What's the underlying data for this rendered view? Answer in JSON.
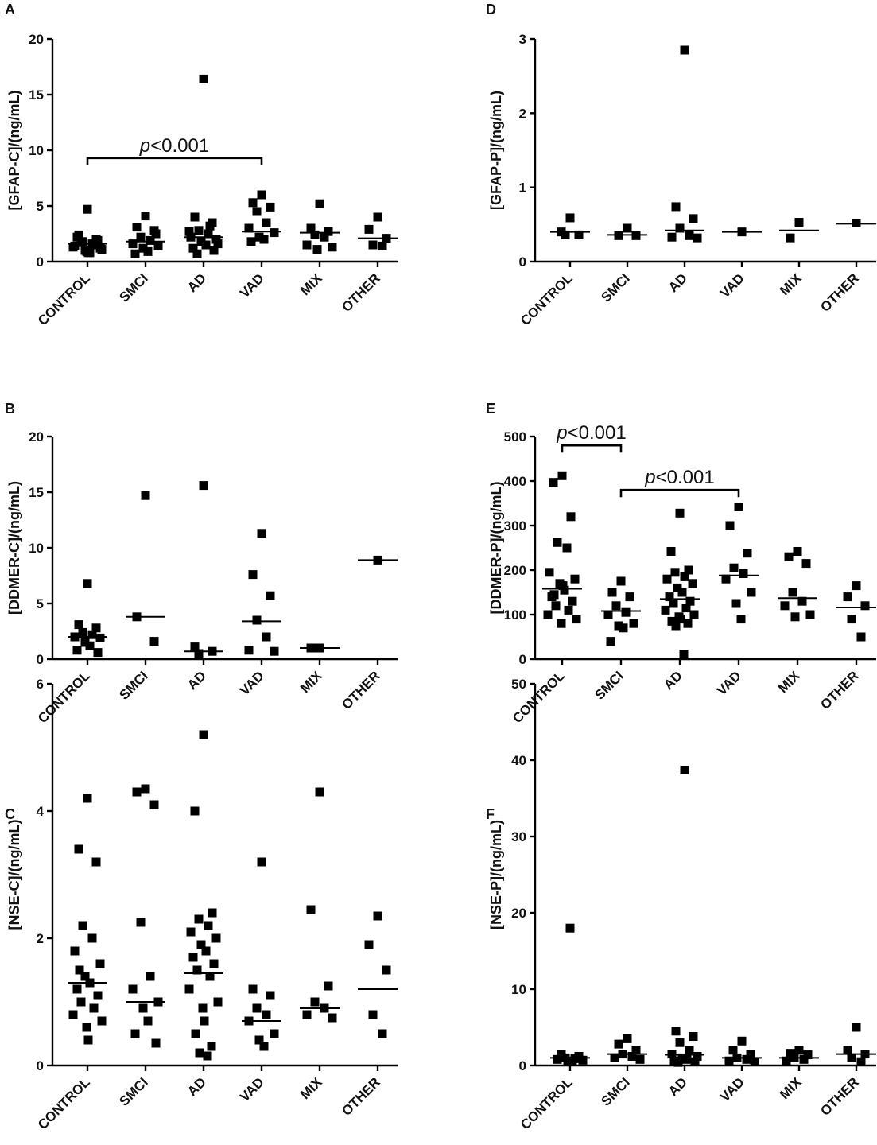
{
  "chart_data": [
    {
      "panel_letter": "A",
      "type": "scatter",
      "ylabel": "[GFAP-C]/(ng/mL)",
      "ylim": [
        0,
        20
      ],
      "yticks": [
        0,
        5,
        10,
        15,
        20
      ],
      "categories": [
        "CONTROL",
        "SMCI",
        "AD",
        "VAD",
        "MIX",
        "OTHER"
      ],
      "medians": [
        1.6,
        1.8,
        2.2,
        2.7,
        2.6,
        2.1
      ],
      "points": [
        [
          4.7,
          2.4,
          2.0,
          1.8,
          1.6,
          1.4,
          1.2,
          1.0,
          0.8,
          2.2,
          1.9,
          1.7,
          1.5,
          1.3,
          1.1,
          0.9,
          0.8
        ],
        [
          4.1,
          3.1,
          2.8,
          2.2,
          1.9,
          1.6,
          1.4,
          1.2,
          0.9,
          0.7,
          2.5
        ],
        [
          16.4,
          4.0,
          3.5,
          2.8,
          2.5,
          2.2,
          2.0,
          1.8,
          1.5,
          1.2,
          1.0,
          0.7,
          3.2,
          2.7,
          1.6
        ],
        [
          6.0,
          5.3,
          4.9,
          4.5,
          3.5,
          3.0,
          2.6,
          2.2,
          2.0,
          1.8
        ],
        [
          5.2,
          3.0,
          2.7,
          2.4,
          2.2,
          1.5,
          1.3,
          1.1
        ],
        [
          4.0,
          2.9,
          2.1,
          1.5,
          1.4
        ]
      ],
      "brackets": [
        {
          "from": "CONTROL",
          "to": "VAD",
          "y": 9.3,
          "label_italic": "p",
          "label_rest": "<0.001"
        }
      ]
    },
    {
      "panel_letter": "D",
      "type": "scatter",
      "ylabel": "[GFAP-P]/(ng/mL)",
      "ylim": [
        0,
        3
      ],
      "yticks": [
        0,
        1,
        2,
        3
      ],
      "categories": [
        "CONTROL",
        "SMCI",
        "AD",
        "VAD",
        "MIX",
        "OTHER"
      ],
      "medians": [
        0.4,
        0.36,
        0.42,
        0.4,
        0.42,
        0.51
      ],
      "points": [
        [
          0.59,
          0.4,
          0.36,
          0.36
        ],
        [
          0.45,
          0.35,
          0.35
        ],
        [
          2.85,
          0.74,
          0.58,
          0.45,
          0.35,
          0.33,
          0.32
        ],
        [
          0.4
        ],
        [
          0.53,
          0.32
        ],
        [
          0.52
        ]
      ],
      "brackets": []
    },
    {
      "panel_letter": "B",
      "type": "scatter",
      "ylabel": "[DDMER-C]/(ng/mL)",
      "ylim": [
        0,
        20
      ],
      "yticks": [
        0,
        5,
        10,
        15,
        20
      ],
      "categories": [
        "CONTROL",
        "SMCI",
        "AD",
        "VAD",
        "MIX",
        "OTHER"
      ],
      "medians": [
        2.0,
        3.8,
        0.7,
        3.4,
        1.0,
        8.9
      ],
      "points": [
        [
          6.8,
          3.1,
          2.8,
          2.4,
          2.2,
          2.0,
          1.9,
          1.5,
          1.2,
          0.8,
          0.6
        ],
        [
          14.7,
          3.8,
          1.6
        ],
        [
          15.6,
          1.1,
          0.7,
          0.5
        ],
        [
          11.3,
          7.6,
          5.7,
          3.5,
          2.0,
          0.8,
          0.7
        ],
        [
          1.0,
          1.0
        ],
        [
          8.9
        ]
      ],
      "brackets": []
    },
    {
      "panel_letter": "E",
      "type": "scatter",
      "ylabel": "[DDMER-P]/(ng/mL)",
      "ylim": [
        0,
        500
      ],
      "yticks": [
        0,
        100,
        200,
        300,
        400,
        500
      ],
      "categories": [
        "CONTROL",
        "SMCI",
        "AD",
        "VAD",
        "MIX",
        "OTHER"
      ],
      "medians": [
        158,
        108,
        135,
        188,
        137,
        116
      ],
      "points": [
        [
          412,
          397,
          320,
          262,
          250,
          195,
          180,
          170,
          155,
          140,
          130,
          120,
          110,
          100,
          90,
          80,
          165,
          145
        ],
        [
          175,
          150,
          140,
          120,
          105,
          100,
          80,
          75,
          70,
          40
        ],
        [
          328,
          242,
          200,
          195,
          185,
          180,
          170,
          160,
          150,
          140,
          130,
          125,
          115,
          110,
          100,
          95,
          90,
          85,
          80,
          75,
          10
        ],
        [
          342,
          300,
          238,
          205,
          192,
          180,
          150,
          125,
          90
        ],
        [
          242,
          230,
          215,
          150,
          130,
          120,
          100,
          95
        ],
        [
          165,
          140,
          120,
          90,
          50
        ]
      ],
      "brackets": [
        {
          "from": "CONTROL",
          "to": "SMCI",
          "y": 480,
          "label_italic": "p",
          "label_rest": "<0.001"
        },
        {
          "from": "SMCI",
          "to": "VAD",
          "y": 380,
          "label_italic": "p",
          "label_rest": "<0.001"
        }
      ]
    },
    {
      "panel_letter": "C",
      "type": "scatter",
      "ylabel": "[NSE-C]/(ng/mL)",
      "ylim": [
        0,
        6
      ],
      "yticks": [
        0,
        2,
        4,
        6
      ],
      "categories": [
        "CONTROL",
        "SMCI",
        "AD",
        "VAD",
        "MIX",
        "OTHER"
      ],
      "medians": [
        1.3,
        1.0,
        1.45,
        0.7,
        0.9,
        1.2
      ],
      "points": [
        [
          4.2,
          3.4,
          3.2,
          2.2,
          2.0,
          1.8,
          1.6,
          1.4,
          1.3,
          1.2,
          1.1,
          1.0,
          0.9,
          0.8,
          0.7,
          0.6,
          0.4,
          1.5
        ],
        [
          4.35,
          4.3,
          4.1,
          2.25,
          1.4,
          1.2,
          1.0,
          0.9,
          0.7,
          0.5,
          0.35
        ],
        [
          5.2,
          4.0,
          2.4,
          2.3,
          2.2,
          2.1,
          2.0,
          1.9,
          1.8,
          1.7,
          1.6,
          1.5,
          1.4,
          1.2,
          1.0,
          0.9,
          0.7,
          0.5,
          0.3,
          0.2,
          0.15
        ],
        [
          3.2,
          1.2,
          1.1,
          0.9,
          0.8,
          0.7,
          0.5,
          0.4,
          0.3
        ],
        [
          4.3,
          2.45,
          1.25,
          1.0,
          0.9,
          0.8,
          0.75
        ],
        [
          2.35,
          1.9,
          1.5,
          0.8,
          0.5
        ]
      ],
      "brackets": []
    },
    {
      "panel_letter": "F",
      "type": "scatter",
      "ylabel": "[NSE-P]/(ng/mL)",
      "ylim": [
        0,
        50
      ],
      "yticks": [
        0,
        10,
        20,
        30,
        40,
        50
      ],
      "categories": [
        "CONTROL",
        "SMCI",
        "AD",
        "VAD",
        "MIX",
        "OTHER"
      ],
      "medians": [
        1.0,
        1.5,
        1.4,
        1.0,
        1.0,
        1.5
      ],
      "points": [
        [
          18.0,
          1.5,
          1.2,
          1.0,
          0.9,
          0.8,
          0.7,
          0.6,
          0.5
        ],
        [
          3.5,
          2.8,
          2.0,
          1.5,
          1.2,
          1.0,
          0.8
        ],
        [
          38.7,
          4.5,
          3.8,
          3.0,
          2.0,
          1.5,
          1.2,
          1.0,
          0.8,
          0.6,
          0.5,
          0.4
        ],
        [
          3.2,
          2.0,
          1.5,
          1.0,
          0.8,
          0.6,
          0.5
        ],
        [
          2.0,
          1.6,
          1.4,
          1.0,
          0.8,
          0.6
        ],
        [
          5.0,
          2.0,
          1.5,
          1.0,
          0.5
        ]
      ],
      "brackets": []
    }
  ]
}
